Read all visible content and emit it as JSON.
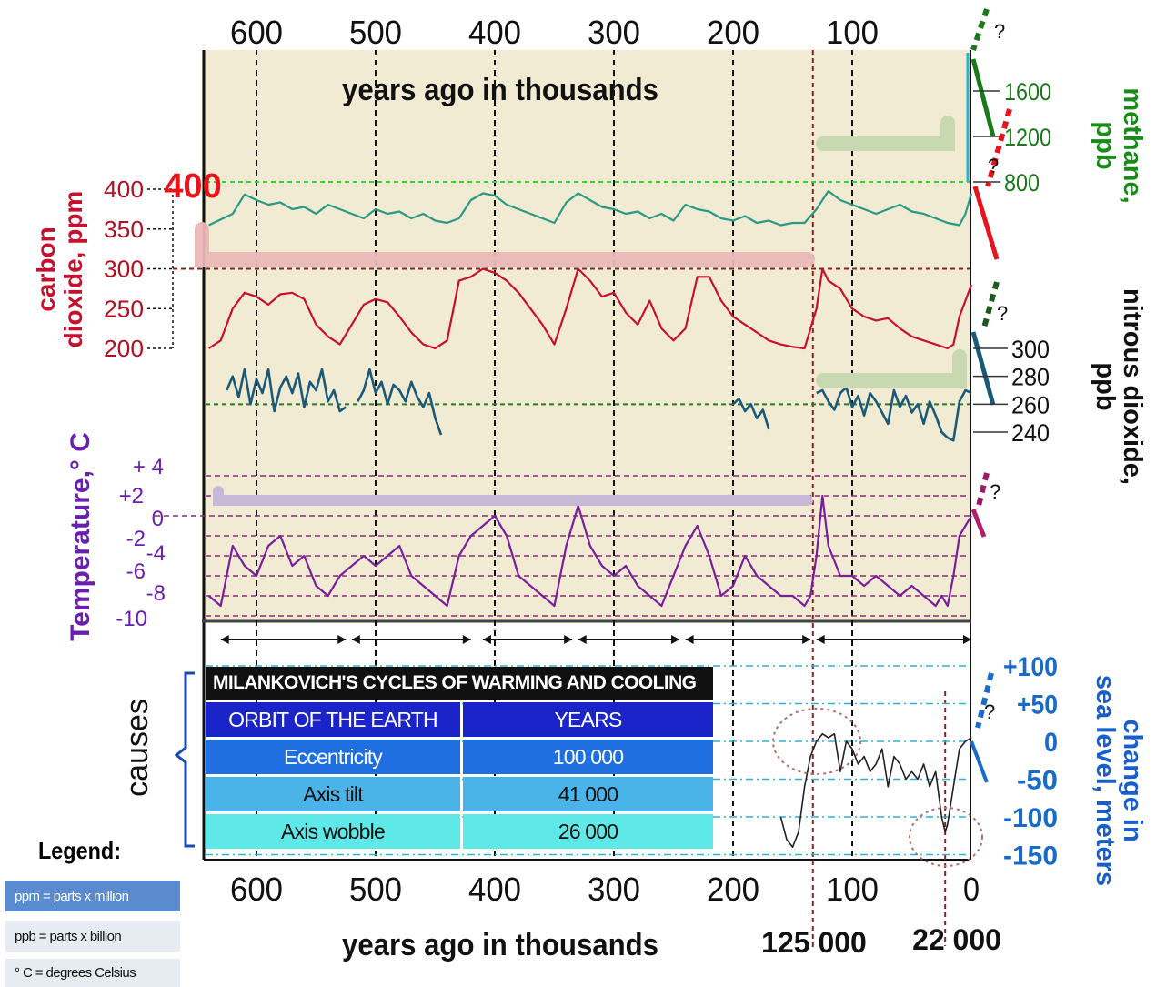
{
  "chart_data": {
    "type": "line",
    "xlabel": "years ago in thousands",
    "x_ticks": [
      "600",
      "500",
      "400",
      "300",
      "200",
      "100",
      "0"
    ],
    "x_range": [
      650,
      0
    ],
    "marker_labels": [
      "125 000",
      "22 000"
    ],
    "co2_annotation": "400",
    "axes": {
      "co2": {
        "label": "carbon dioxide, ppm",
        "ticks": [
          "400",
          "350",
          "300",
          "250",
          "200"
        ],
        "range": [
          200,
          400
        ]
      },
      "methane": {
        "label": "methane, ppb",
        "ticks": [
          "1600",
          "1200",
          "800"
        ],
        "range": [
          800,
          1600
        ]
      },
      "nitrous": {
        "label": "nitrous dioxide, ppb",
        "ticks": [
          "300",
          "280",
          "260",
          "240"
        ],
        "range": [
          240,
          300
        ]
      },
      "temperature": {
        "label": "Temperature,° C",
        "ticks": [
          "+ 4",
          "+2",
          "0",
          "-2",
          "-4",
          "-6",
          "-8",
          "-10"
        ],
        "range": [
          -10,
          4
        ]
      },
      "sea_level": {
        "label": "change in sea level, meters",
        "ticks": [
          "+100",
          "+50",
          "0",
          "-50",
          "-100",
          "-150"
        ],
        "range": [
          -150,
          100
        ]
      }
    },
    "question_mark": "?",
    "causes_label": "causes",
    "series": [
      {
        "name": "methane",
        "color": "#2a9a86",
        "x": [
          640,
          630,
          620,
          610,
          600,
          590,
          580,
          570,
          560,
          550,
          540,
          530,
          520,
          510,
          500,
          490,
          480,
          470,
          460,
          450,
          440,
          430,
          420,
          410,
          400,
          390,
          380,
          370,
          360,
          350,
          340,
          330,
          320,
          310,
          300,
          290,
          280,
          270,
          260,
          250,
          240,
          230,
          220,
          210,
          200,
          190,
          180,
          170,
          160,
          150,
          140,
          130,
          120,
          110,
          100,
          90,
          80,
          70,
          60,
          50,
          40,
          30,
          20,
          10,
          5,
          0
        ],
        "values": [
          420,
          470,
          520,
          690,
          640,
          600,
          620,
          560,
          580,
          520,
          600,
          560,
          520,
          480,
          560,
          520,
          540,
          480,
          520,
          460,
          440,
          480,
          640,
          700,
          680,
          600,
          560,
          520,
          480,
          440,
          620,
          700,
          640,
          580,
          560,
          520,
          540,
          480,
          520,
          460,
          600,
          560,
          540,
          480,
          460,
          500,
          440,
          460,
          420,
          440,
          440,
          560,
          720,
          640,
          600,
          560,
          520,
          560,
          600,
          540,
          520,
          480,
          440,
          420,
          520,
          700
        ]
      },
      {
        "name": "carbon dioxide",
        "color": "#c8102e",
        "x": [
          640,
          630,
          620,
          610,
          600,
          590,
          580,
          570,
          560,
          550,
          540,
          530,
          520,
          510,
          500,
          490,
          480,
          470,
          460,
          450,
          440,
          430,
          420,
          410,
          400,
          390,
          380,
          370,
          360,
          350,
          340,
          330,
          320,
          310,
          300,
          290,
          280,
          270,
          260,
          250,
          240,
          230,
          220,
          210,
          200,
          190,
          180,
          170,
          160,
          150,
          140,
          130,
          125,
          120,
          110,
          100,
          90,
          80,
          70,
          60,
          50,
          40,
          30,
          20,
          15,
          10,
          5,
          0
        ],
        "values": [
          200,
          210,
          250,
          270,
          265,
          255,
          268,
          270,
          262,
          230,
          215,
          205,
          230,
          255,
          262,
          258,
          240,
          220,
          205,
          200,
          210,
          285,
          290,
          300,
          295,
          285,
          270,
          250,
          230,
          205,
          250,
          300,
          285,
          265,
          270,
          245,
          230,
          260,
          225,
          210,
          225,
          290,
          290,
          260,
          240,
          230,
          220,
          210,
          205,
          202,
          200,
          250,
          300,
          285,
          275,
          250,
          240,
          235,
          238,
          225,
          215,
          210,
          205,
          200,
          205,
          240,
          260,
          280
        ]
      },
      {
        "name": "nitrous dioxide",
        "color": "#1a5a78",
        "segments": [
          {
            "x": [
              625,
              620,
              615,
              610,
              605,
              600,
              595,
              590,
              585,
              580,
              575,
              570,
              565,
              560,
              555,
              550,
              545,
              540,
              535,
              530,
              525
            ],
            "values": [
              270,
              280,
              265,
              285,
              260,
              278,
              268,
              285,
              255,
              272,
              280,
              268,
              282,
              258,
              276,
              270,
              285,
              262,
              270,
              255,
              258
            ]
          },
          {
            "x": [
              515,
              510,
              505,
              500,
              495,
              490,
              485,
              480,
              475,
              470,
              465,
              460,
              455,
              450,
              445
            ],
            "values": [
              262,
              270,
              285,
              268,
              276,
              260,
              274,
              270,
              262,
              276,
              265,
              258,
              268,
              250,
              238
            ]
          },
          {
            "x": [
              200,
              195,
              190,
              185,
              180,
              175,
              170
            ],
            "values": [
              260,
              264,
              255,
              260,
              250,
              256,
              242
            ]
          },
          {
            "x": [
              130,
              125,
              120,
              115,
              110,
              105,
              100,
              95,
              90,
              85,
              80,
              75,
              70,
              65,
              60,
              55,
              50,
              45,
              40,
              35,
              30,
              25,
              20,
              15,
              10,
              5,
              0
            ],
            "values": [
              268,
              270,
              262,
              256,
              268,
              272,
              258,
              266,
              252,
              268,
              262,
              254,
              246,
              270,
              258,
              266,
              254,
              260,
              246,
              262,
              252,
              240,
              236,
              234,
              262,
              270,
              268
            ]
          }
        ]
      },
      {
        "name": "temperature",
        "color": "#7a1f9c",
        "x": [
          640,
          630,
          620,
          610,
          600,
          590,
          580,
          570,
          560,
          550,
          540,
          530,
          520,
          510,
          500,
          490,
          480,
          470,
          460,
          450,
          440,
          430,
          420,
          410,
          400,
          390,
          380,
          370,
          360,
          350,
          340,
          330,
          320,
          310,
          300,
          290,
          280,
          270,
          260,
          250,
          240,
          230,
          220,
          210,
          200,
          190,
          180,
          170,
          160,
          150,
          140,
          135,
          130,
          125,
          120,
          110,
          100,
          90,
          80,
          70,
          60,
          50,
          40,
          30,
          25,
          20,
          15,
          10,
          5,
          0
        ],
        "values": [
          -8,
          -9,
          -3,
          -5,
          -6,
          -3,
          -2,
          -5,
          -4,
          -7,
          -8,
          -6,
          -5,
          -4,
          -5,
          -4,
          -3,
          -6,
          -7,
          -8,
          -9,
          -4,
          -2,
          -1,
          0,
          -2,
          -6,
          -7,
          -8,
          -9,
          -3,
          1,
          -3,
          -5,
          -6,
          -5,
          -7,
          -8,
          -9,
          -6,
          -3,
          -1,
          -4,
          -8,
          -7,
          -4,
          -6,
          -7,
          -8,
          -8,
          -9,
          -8,
          -4,
          2,
          -3,
          -6,
          -6,
          -7,
          -6,
          -7,
          -8,
          -7,
          -8,
          -9,
          -8,
          -9,
          -6,
          -2,
          -1,
          0
        ]
      },
      {
        "name": "sea level",
        "color": "#222222",
        "x": [
          160,
          155,
          150,
          145,
          140,
          135,
          130,
          125,
          120,
          115,
          110,
          105,
          100,
          95,
          90,
          85,
          80,
          75,
          70,
          65,
          60,
          55,
          50,
          45,
          40,
          35,
          30,
          25,
          22,
          20,
          15,
          10,
          5,
          0
        ],
        "values": [
          -100,
          -130,
          -140,
          -120,
          -60,
          -20,
          0,
          10,
          5,
          10,
          -40,
          0,
          -10,
          -30,
          -20,
          -40,
          -30,
          -10,
          -60,
          -20,
          -30,
          -50,
          -40,
          -50,
          -30,
          -60,
          -40,
          -100,
          -120,
          -110,
          -60,
          -10,
          0,
          5
        ]
      }
    ]
  },
  "milankovitch": {
    "title": "MILANKOVICH'S CYCLES  OF WARMING AND COOLING",
    "header": [
      "ORBIT OF THE EARTH",
      "YEARS"
    ],
    "rows": [
      {
        "name": "Eccentricity",
        "years": "100 000"
      },
      {
        "name": "Axis tilt",
        "years": "41 000"
      },
      {
        "name": "Axis wobble",
        "years": "26 000"
      }
    ]
  },
  "legend": {
    "title": "Legend:",
    "items": [
      "ppm = parts x million",
      "ppb = parts x billion",
      "° C = degrees Celsius"
    ]
  }
}
